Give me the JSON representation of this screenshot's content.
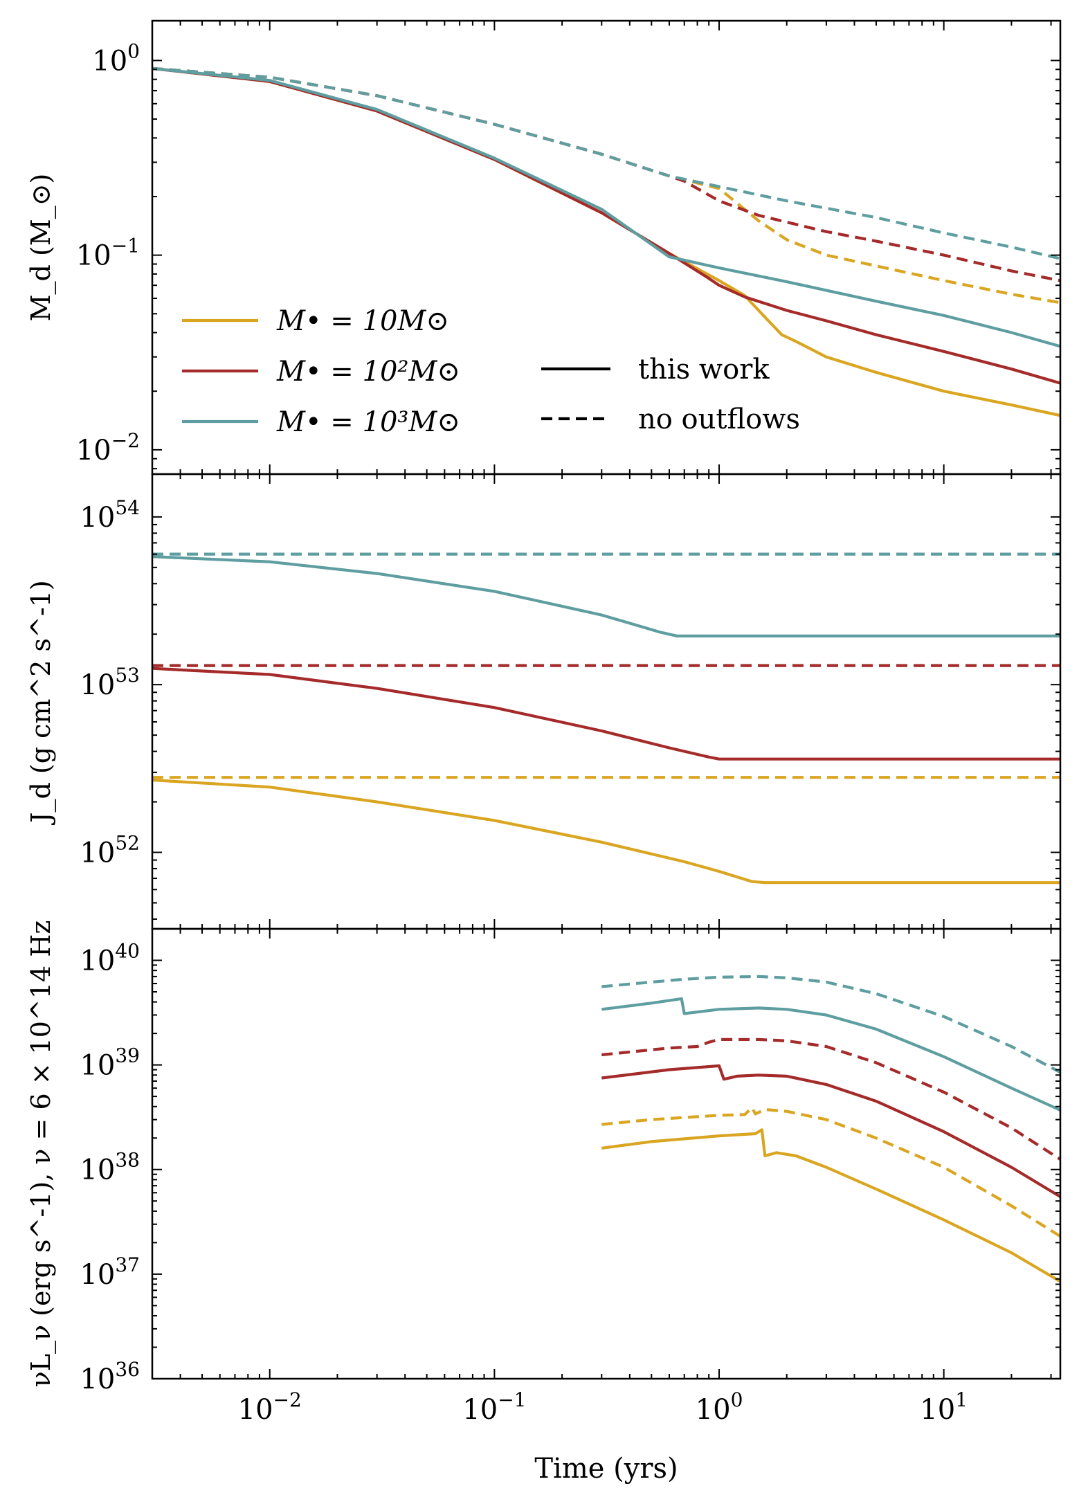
{
  "chart_data": [
    {
      "type": "line",
      "panel": "top",
      "ylabel": "M_d (M_⊙)",
      "yscale": "log",
      "xscale": "log",
      "xlim": [
        0.003,
        33
      ],
      "ylim": [
        0.0075,
        1.6
      ],
      "yticks": [
        {
          "value": 1,
          "label": "10^0"
        },
        {
          "value": 0.1,
          "label": "10^-1"
        },
        {
          "value": 0.01,
          "label": "10^-2"
        }
      ],
      "series": [
        {
          "name": "M• = 10 M⊙ (this work)",
          "color": "#DAA520",
          "style": "solid",
          "points": [
            [
              0.003,
              0.91
            ],
            [
              0.01,
              0.78
            ],
            [
              0.03,
              0.55
            ],
            [
              0.1,
              0.31
            ],
            [
              0.3,
              0.165
            ],
            [
              0.6,
              0.102
            ],
            [
              1.0,
              0.074
            ],
            [
              1.3,
              0.062
            ],
            [
              1.6,
              0.048
            ],
            [
              1.9,
              0.039
            ],
            [
              2.2,
              0.036
            ],
            [
              3,
              0.03
            ],
            [
              5,
              0.025
            ],
            [
              10,
              0.02
            ],
            [
              20,
              0.017
            ],
            [
              33,
              0.015
            ]
          ]
        },
        {
          "name": "M• = 10 M⊙ (no outflows)",
          "color": "#DAA520",
          "style": "dashed",
          "points": [
            [
              0.003,
              0.91
            ],
            [
              0.01,
              0.82
            ],
            [
              0.03,
              0.66
            ],
            [
              0.1,
              0.47
            ],
            [
              0.3,
              0.33
            ],
            [
              0.6,
              0.255
            ],
            [
              1.0,
              0.22
            ],
            [
              1.5,
              0.15
            ],
            [
              2,
              0.12
            ],
            [
              3,
              0.1
            ],
            [
              5,
              0.088
            ],
            [
              10,
              0.074
            ],
            [
              20,
              0.063
            ],
            [
              33,
              0.057
            ]
          ]
        },
        {
          "name": "M• = 10^2 M⊙ (this work)",
          "color": "#A52A2A",
          "style": "solid",
          "points": [
            [
              0.003,
              0.91
            ],
            [
              0.01,
              0.78
            ],
            [
              0.03,
              0.55
            ],
            [
              0.1,
              0.31
            ],
            [
              0.3,
              0.165
            ],
            [
              0.6,
              0.102
            ],
            [
              0.9,
              0.076
            ],
            [
              1.0,
              0.07
            ],
            [
              1.3,
              0.061
            ],
            [
              2,
              0.052
            ],
            [
              3,
              0.046
            ],
            [
              5,
              0.039
            ],
            [
              10,
              0.032
            ],
            [
              20,
              0.026
            ],
            [
              33,
              0.022
            ]
          ]
        },
        {
          "name": "M• = 10^2 M⊙ (no outflows)",
          "color": "#A52A2A",
          "style": "dashed",
          "points": [
            [
              0.003,
              0.91
            ],
            [
              0.01,
              0.82
            ],
            [
              0.03,
              0.66
            ],
            [
              0.1,
              0.47
            ],
            [
              0.3,
              0.33
            ],
            [
              0.6,
              0.255
            ],
            [
              0.7,
              0.24
            ],
            [
              1.0,
              0.19
            ],
            [
              1.5,
              0.16
            ],
            [
              3,
              0.132
            ],
            [
              5,
              0.118
            ],
            [
              10,
              0.1
            ],
            [
              20,
              0.083
            ],
            [
              33,
              0.074
            ]
          ]
        },
        {
          "name": "M• = 10^3 M⊙ (this work)",
          "color": "#5F9EA0",
          "style": "solid",
          "points": [
            [
              0.003,
              0.91
            ],
            [
              0.01,
              0.79
            ],
            [
              0.03,
              0.56
            ],
            [
              0.1,
              0.315
            ],
            [
              0.3,
              0.172
            ],
            [
              0.6,
              0.098
            ],
            [
              1.0,
              0.086
            ],
            [
              2,
              0.073
            ],
            [
              5,
              0.058
            ],
            [
              10,
              0.049
            ],
            [
              20,
              0.04
            ],
            [
              33,
              0.034
            ]
          ]
        },
        {
          "name": "M• = 10^3 M⊙ (no outflows)",
          "color": "#5F9EA0",
          "style": "dashed",
          "points": [
            [
              0.003,
              0.91
            ],
            [
              0.01,
              0.82
            ],
            [
              0.03,
              0.66
            ],
            [
              0.1,
              0.47
            ],
            [
              0.3,
              0.33
            ],
            [
              0.6,
              0.255
            ],
            [
              1.0,
              0.225
            ],
            [
              2,
              0.19
            ],
            [
              5,
              0.156
            ],
            [
              10,
              0.13
            ],
            [
              20,
              0.11
            ],
            [
              33,
              0.096
            ]
          ]
        }
      ]
    },
    {
      "type": "line",
      "panel": "middle",
      "ylabel": "J_d (g cm^2 s^-1)",
      "yscale": "log",
      "xscale": "log",
      "xlim": [
        0.003,
        33
      ],
      "ylim": [
        3.5e+51,
        1.8e+54
      ],
      "yticks": [
        {
          "value": 1e+54,
          "label": "10^54"
        },
        {
          "value": 1e+53,
          "label": "10^53"
        },
        {
          "value": 1e+52,
          "label": "10^52"
        }
      ],
      "series": [
        {
          "name": "M• = 10 M⊙ (this work)",
          "color": "#DAA520",
          "style": "solid",
          "points": [
            [
              0.003,
              2.7e+52
            ],
            [
              0.01,
              2.45e+52
            ],
            [
              0.03,
              2e+52
            ],
            [
              0.1,
              1.55e+52
            ],
            [
              0.3,
              1.15e+52
            ],
            [
              0.7,
              8.8e+51
            ],
            [
              1.0,
              7.7e+51
            ],
            [
              1.4,
              6.7e+51
            ],
            [
              1.6,
              6.6e+51
            ],
            [
              33,
              6.6e+51
            ]
          ]
        },
        {
          "name": "M• = 10 M⊙ (no outflows)",
          "color": "#DAA520",
          "style": "dashed",
          "points": [
            [
              0.003,
              2.8e+52
            ],
            [
              33,
              2.8e+52
            ]
          ]
        },
        {
          "name": "M• = 10^2 M⊙ (this work)",
          "color": "#A52A2A",
          "style": "solid",
          "points": [
            [
              0.003,
              1.25e+53
            ],
            [
              0.01,
              1.15e+53
            ],
            [
              0.03,
              9.5e+52
            ],
            [
              0.1,
              7.3e+52
            ],
            [
              0.3,
              5.3e+52
            ],
            [
              0.6,
              4.2e+52
            ],
            [
              0.9,
              3.7e+52
            ],
            [
              1.0,
              3.6e+52
            ],
            [
              33,
              3.6e+52
            ]
          ]
        },
        {
          "name": "M• = 10^2 M⊙ (no outflows)",
          "color": "#A52A2A",
          "style": "dashed",
          "points": [
            [
              0.003,
              1.3e+53
            ],
            [
              33,
              1.3e+53
            ]
          ]
        },
        {
          "name": "M• = 10^3 M⊙ (this work)",
          "color": "#5F9EA0",
          "style": "solid",
          "points": [
            [
              0.003,
              5.8e+53
            ],
            [
              0.01,
              5.4e+53
            ],
            [
              0.03,
              4.6e+53
            ],
            [
              0.1,
              3.6e+53
            ],
            [
              0.3,
              2.6e+53
            ],
            [
              0.55,
              2.05e+53
            ],
            [
              0.65,
              1.95e+53
            ],
            [
              33,
              1.95e+53
            ]
          ]
        },
        {
          "name": "M• = 10^3 M⊙ (no outflows)",
          "color": "#5F9EA0",
          "style": "dashed",
          "points": [
            [
              0.003,
              6e+53
            ],
            [
              33,
              6e+53
            ]
          ]
        }
      ]
    },
    {
      "type": "line",
      "panel": "bottom",
      "ylabel": "νL_ν (erg s^-1), ν = 6 × 10^14 Hz",
      "xlabel": "Time (yrs)",
      "yscale": "log",
      "xscale": "log",
      "xlim": [
        0.003,
        33
      ],
      "ylim": [
        1e+36,
        2e+40
      ],
      "yticks": [
        {
          "value": 1e+40,
          "label": "10^40"
        },
        {
          "value": 1e+39,
          "label": "10^39"
        },
        {
          "value": 1e+38,
          "label": "10^38"
        },
        {
          "value": 1e+37,
          "label": "10^37"
        },
        {
          "value": 1e+36,
          "label": "10^36"
        }
      ],
      "xticks": [
        {
          "value": 0.01,
          "label": "10^-2"
        },
        {
          "value": 0.1,
          "label": "10^-1"
        },
        {
          "value": 1,
          "label": "10^0"
        },
        {
          "value": 10,
          "label": "10^1"
        }
      ],
      "series": [
        {
          "name": "M• = 10 M⊙ (this work)",
          "color": "#DAA520",
          "style": "solid",
          "points": [
            [
              0.3,
              1.6e+38
            ],
            [
              0.5,
              1.85e+38
            ],
            [
              1.0,
              2.1e+38
            ],
            [
              1.45,
              2.2e+38
            ],
            [
              1.55,
              2.4e+38
            ],
            [
              1.6,
              1.35e+38
            ],
            [
              1.8,
              1.45e+38
            ],
            [
              2.2,
              1.35e+38
            ],
            [
              3,
              1.05e+38
            ],
            [
              5,
              6.5e+37
            ],
            [
              10,
              3.3e+37
            ],
            [
              20,
              1.6e+37
            ],
            [
              33,
              8.5e+36
            ]
          ]
        },
        {
          "name": "M• = 10 M⊙ (no outflows)",
          "color": "#DAA520",
          "style": "dashed",
          "points": [
            [
              0.3,
              2.7e+38
            ],
            [
              0.5,
              3e+38
            ],
            [
              1.0,
              3.3e+38
            ],
            [
              1.3,
              3.35e+38
            ],
            [
              1.4,
              3.9e+38
            ],
            [
              1.45,
              3.4e+38
            ],
            [
              1.6,
              3.75e+38
            ],
            [
              2,
              3.6e+38
            ],
            [
              3,
              3e+38
            ],
            [
              5,
              2e+38
            ],
            [
              10,
              1.05e+38
            ],
            [
              20,
              4.5e+37
            ],
            [
              33,
              2.3e+37
            ]
          ]
        },
        {
          "name": "M• = 10^2 M⊙ (this work)",
          "color": "#A52A2A",
          "style": "solid",
          "points": [
            [
              0.3,
              7.5e+38
            ],
            [
              0.6,
              9e+38
            ],
            [
              1.0,
              9.8e+38
            ],
            [
              1.05,
              7.3e+38
            ],
            [
              1.2,
              7.8e+38
            ],
            [
              1.5,
              8e+38
            ],
            [
              2,
              7.8e+38
            ],
            [
              3,
              6.5e+38
            ],
            [
              5,
              4.5e+38
            ],
            [
              10,
              2.3e+38
            ],
            [
              20,
              1.05e+38
            ],
            [
              33,
              5.5e+37
            ]
          ]
        },
        {
          "name": "M• = 10^2 M⊙ (no outflows)",
          "color": "#A52A2A",
          "style": "dashed",
          "points": [
            [
              0.3,
              1.25e+39
            ],
            [
              0.6,
              1.45e+39
            ],
            [
              0.8,
              1.5e+39
            ],
            [
              0.9,
              1.65e+39
            ],
            [
              1.0,
              1.75e+39
            ],
            [
              1.5,
              1.75e+39
            ],
            [
              2,
              1.7e+39
            ],
            [
              3,
              1.5e+39
            ],
            [
              5,
              1.05e+39
            ],
            [
              10,
              5.5e+38
            ],
            [
              20,
              2.5e+38
            ],
            [
              33,
              1.25e+38
            ]
          ]
        },
        {
          "name": "M• = 10^3 M⊙ (this work)",
          "color": "#5F9EA0",
          "style": "solid",
          "points": [
            [
              0.3,
              3.4e+39
            ],
            [
              0.5,
              3.9e+39
            ],
            [
              0.68,
              4.3e+39
            ],
            [
              0.7,
              3.1e+39
            ],
            [
              1.0,
              3.4e+39
            ],
            [
              1.5,
              3.5e+39
            ],
            [
              2,
              3.4e+39
            ],
            [
              3,
              3e+39
            ],
            [
              5,
              2.2e+39
            ],
            [
              10,
              1.2e+39
            ],
            [
              20,
              6e+38
            ],
            [
              33,
              3.7e+38
            ]
          ]
        },
        {
          "name": "M• = 10^3 M⊙ (no outflows)",
          "color": "#5F9EA0",
          "style": "dashed",
          "points": [
            [
              0.3,
              5.6e+39
            ],
            [
              0.5,
              6.2e+39
            ],
            [
              0.7,
              6.6e+39
            ],
            [
              1.0,
              6.9e+39
            ],
            [
              1.5,
              7e+39
            ],
            [
              2,
              6.8e+39
            ],
            [
              3,
              6.2e+39
            ],
            [
              5,
              4.8e+39
            ],
            [
              10,
              2.9e+39
            ],
            [
              20,
              1.5e+39
            ],
            [
              33,
              8.5e+38
            ]
          ]
        }
      ]
    }
  ],
  "legend": {
    "mass_entries": [
      {
        "label": "M• = 10M⊙",
        "color": "#DAA520"
      },
      {
        "label": "M• = 10²M⊙",
        "color": "#A52A2A"
      },
      {
        "label": "M• = 10³M⊙",
        "color": "#5F9EA0"
      }
    ],
    "style_entries": [
      {
        "label": "this work",
        "style": "solid"
      },
      {
        "label": "no outflows",
        "style": "dashed"
      }
    ]
  }
}
